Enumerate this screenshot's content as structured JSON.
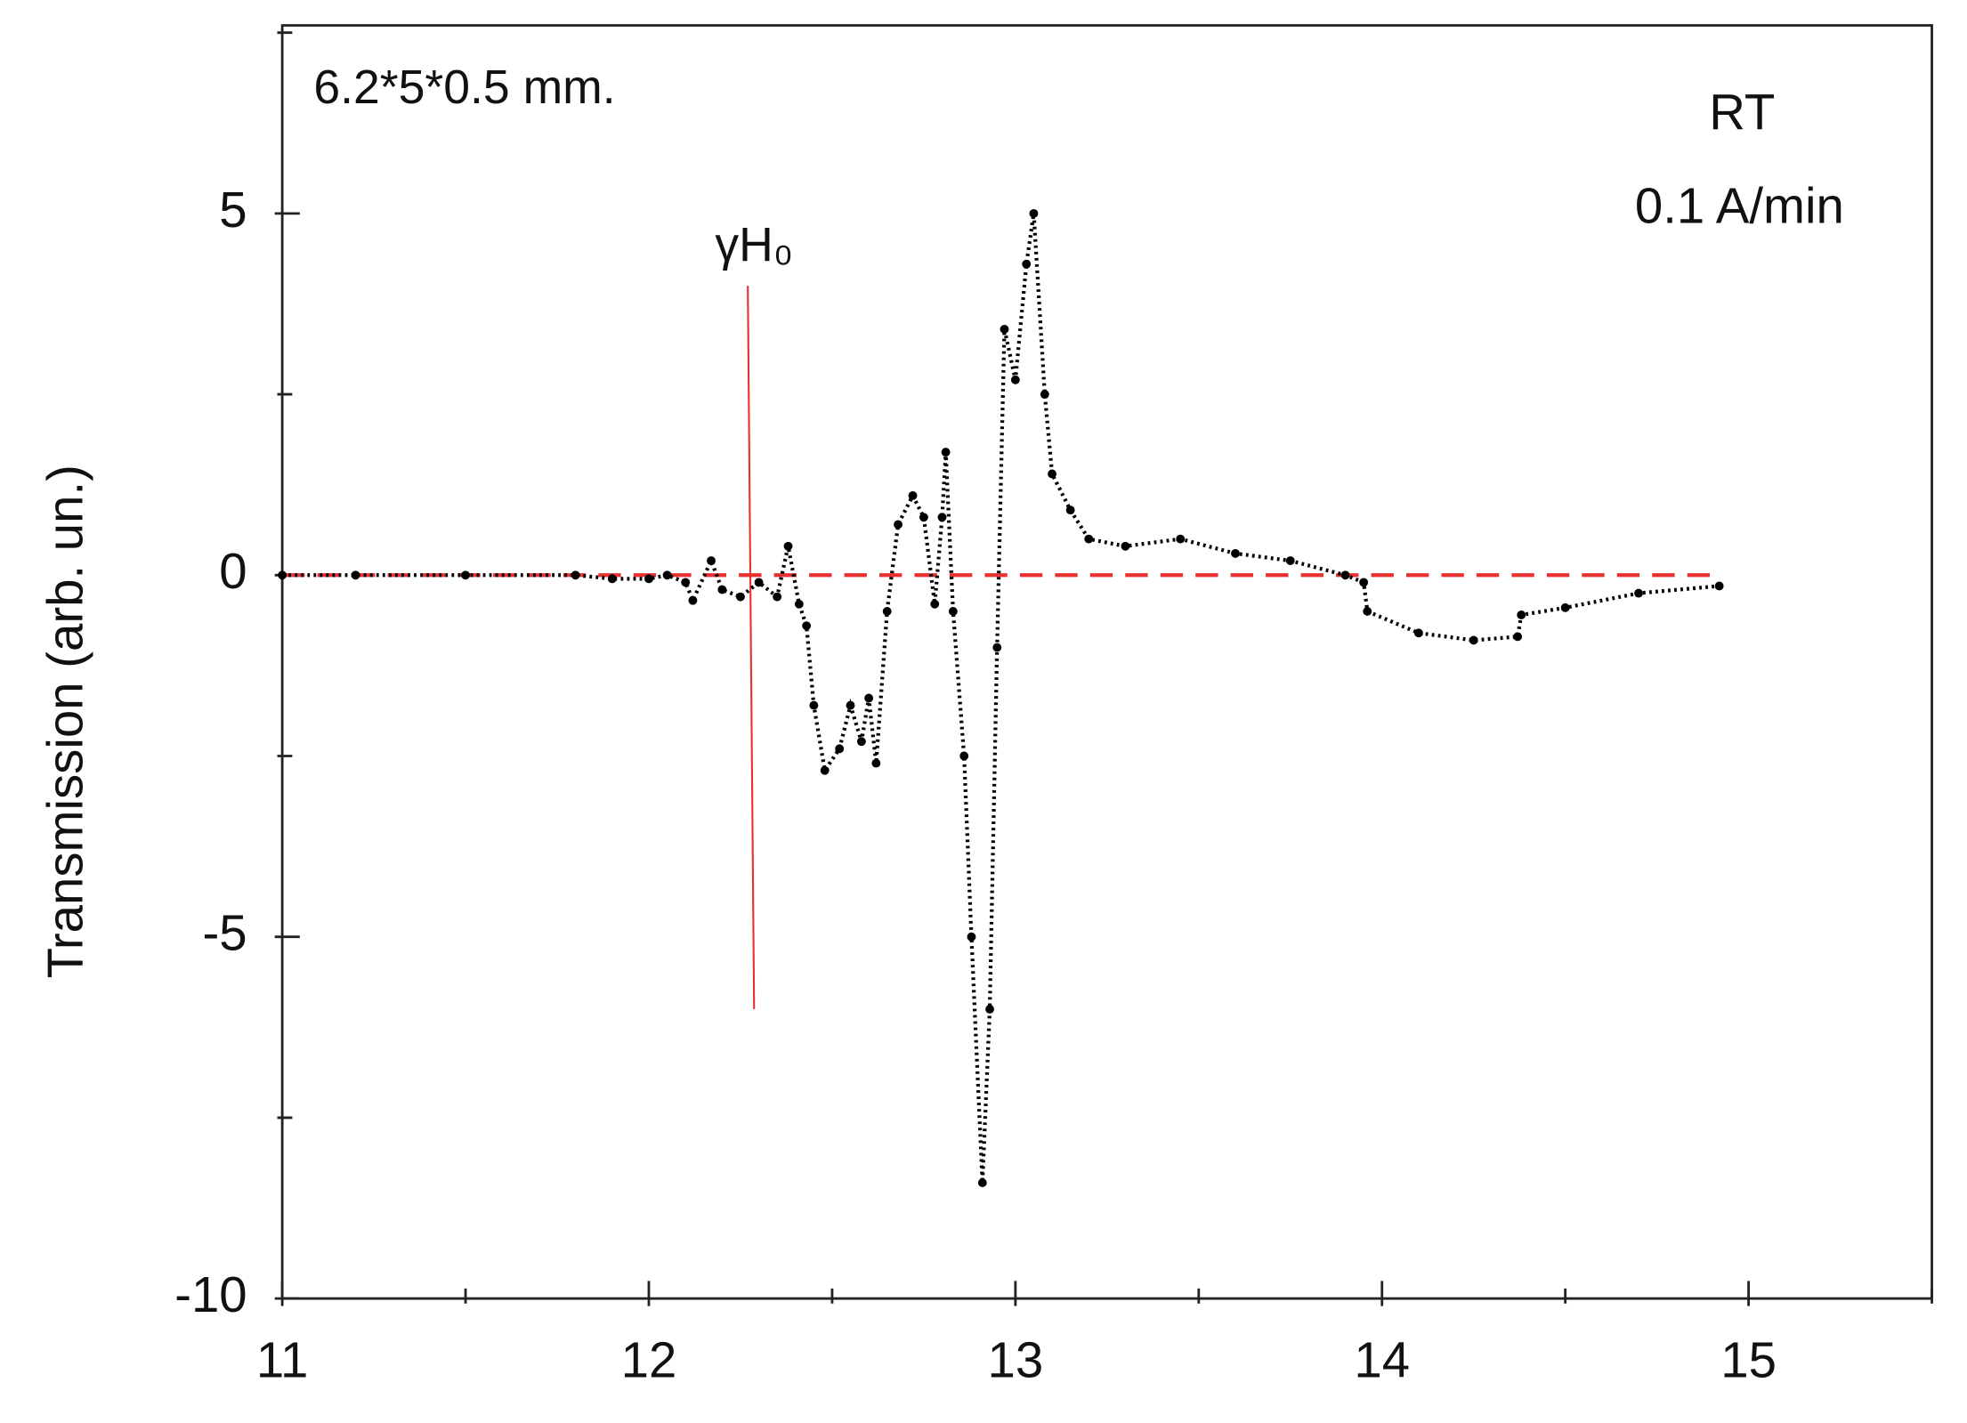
{
  "chart_data": {
    "type": "scatter",
    "ylabel": "Transmission (arb. un.)",
    "annotations": {
      "sample": "6.2*5*0.5 mm.",
      "temperature": "RT",
      "rate": "0.1 A/min",
      "marker": "γH₀"
    },
    "x": [
      11.0,
      11.2,
      11.5,
      11.8,
      11.9,
      12.0,
      12.05,
      12.1,
      12.12,
      12.17,
      12.2,
      12.25,
      12.3,
      12.35,
      12.38,
      12.41,
      12.43,
      12.45,
      12.48,
      12.52,
      12.55,
      12.58,
      12.6,
      12.62,
      12.65,
      12.68,
      12.72,
      12.75,
      12.78,
      12.8,
      12.81,
      12.83,
      12.86,
      12.88,
      12.91,
      12.93,
      12.95,
      12.97,
      13.0,
      13.03,
      13.05,
      13.08,
      13.1,
      13.15,
      13.2,
      13.3,
      13.45,
      13.6,
      13.75,
      13.9,
      13.95,
      13.96,
      14.1,
      14.25,
      14.37,
      14.38,
      14.5,
      14.7,
      14.92
    ],
    "series": [
      {
        "color": "#000000",
        "values": [
          0,
          0,
          0,
          0,
          -0.05,
          -0.05,
          0,
          -0.1,
          -0.35,
          0.2,
          -0.2,
          -0.3,
          -0.1,
          -0.3,
          0.4,
          -0.4,
          -0.7,
          -1.8,
          -2.7,
          -2.4,
          -1.8,
          -2.3,
          -1.7,
          -2.6,
          -0.5,
          0.7,
          1.1,
          0.8,
          -0.4,
          0.8,
          1.7,
          -0.5,
          -2.5,
          -5,
          -8.4,
          -6,
          -1,
          3.4,
          2.7,
          4.3,
          5.0,
          2.5,
          1.4,
          0.9,
          0.5,
          0.4,
          0.5,
          0.3,
          0.2,
          0,
          -0.1,
          -0.5,
          -0.8,
          -0.9,
          -0.85,
          -0.55,
          -0.45,
          -0.25,
          -0.15
        ]
      }
    ],
    "reference_line": {
      "y": 0,
      "color": "#e83030"
    },
    "marker_line": {
      "x": 12.27,
      "y": [
        4,
        -6
      ],
      "color": "#e83030"
    },
    "xlim": [
      11,
      15.5
    ],
    "xticks": [
      11,
      12,
      13,
      14,
      15
    ],
    "xminorticks": [
      11.5,
      12.5,
      13.5,
      14.5,
      15.5
    ],
    "ylim": [
      -10,
      7.6
    ],
    "yticks": [
      -10,
      -5,
      0,
      5
    ],
    "yminorticks": [
      -7.5,
      -2.5,
      2.5,
      7.5
    ]
  }
}
